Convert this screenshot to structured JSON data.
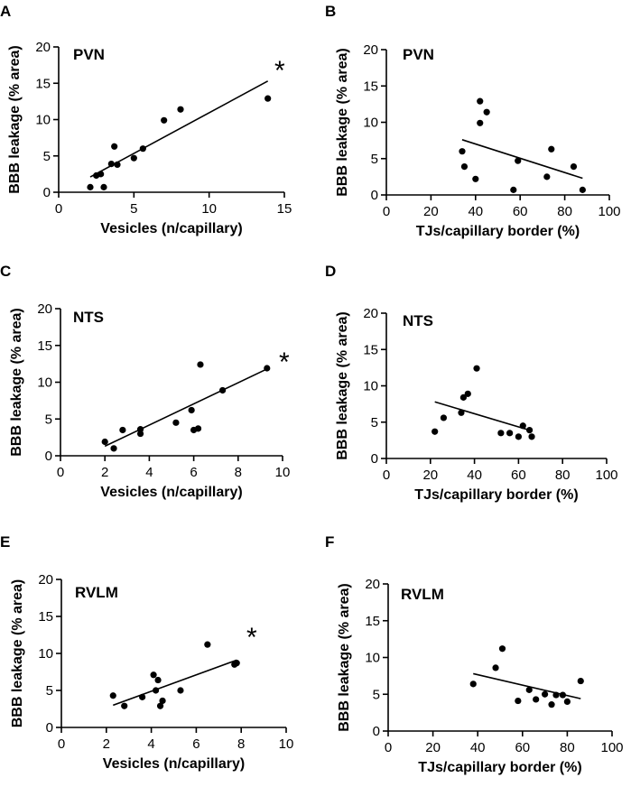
{
  "chart_data": [
    {
      "type": "scatter",
      "panel": "A",
      "title": "PVN",
      "xlabel": "Vesicles (n/capillary)",
      "ylabel": "BBB leakage (% area)",
      "xlim": [
        0,
        15
      ],
      "ylim": [
        0,
        20
      ],
      "xticks": [
        "0",
        "5",
        "10",
        "15"
      ],
      "yticks": [
        "0",
        "5",
        "10",
        "15",
        "20"
      ],
      "significance": "*",
      "points": [
        [
          2.1,
          0.7
        ],
        [
          2.5,
          2.3
        ],
        [
          2.8,
          2.5
        ],
        [
          3.0,
          0.7
        ],
        [
          3.5,
          3.9
        ],
        [
          3.7,
          6.3
        ],
        [
          3.9,
          3.8
        ],
        [
          5.0,
          4.7
        ],
        [
          5.6,
          6.0
        ],
        [
          7.0,
          9.9
        ],
        [
          8.1,
          11.4
        ],
        [
          13.9,
          12.9
        ]
      ],
      "fit": [
        [
          2.1,
          2.1
        ],
        [
          13.9,
          15.3
        ]
      ]
    },
    {
      "type": "scatter",
      "panel": "B",
      "title": "PVN",
      "xlabel": "TJs/capillary border (%)",
      "ylabel": "BBB leakage (% area)",
      "xlim": [
        0,
        100
      ],
      "ylim": [
        0,
        20
      ],
      "xticks": [
        "0",
        "20",
        "40",
        "60",
        "80",
        "100"
      ],
      "yticks": [
        "0",
        "5",
        "10",
        "15",
        "20"
      ],
      "significance": "",
      "points": [
        [
          34,
          6.0
        ],
        [
          35,
          3.9
        ],
        [
          40,
          2.2
        ],
        [
          42,
          12.9
        ],
        [
          42,
          9.9
        ],
        [
          45,
          11.4
        ],
        [
          57,
          0.7
        ],
        [
          59,
          4.7
        ],
        [
          72,
          2.5
        ],
        [
          74,
          6.3
        ],
        [
          84,
          3.9
        ],
        [
          88,
          0.7
        ]
      ],
      "fit": [
        [
          34,
          7.6
        ],
        [
          88,
          2.3
        ]
      ]
    },
    {
      "type": "scatter",
      "panel": "C",
      "title": "NTS",
      "xlabel": "Vesicles (n/capillary)",
      "ylabel": "BBB leakage (% area)",
      "xlim": [
        0,
        10
      ],
      "ylim": [
        0,
        20
      ],
      "xticks": [
        "0",
        "2",
        "4",
        "6",
        "8",
        "10"
      ],
      "yticks": [
        "0",
        "5",
        "10",
        "15",
        "20"
      ],
      "significance": "*",
      "points": [
        [
          2.0,
          1.9
        ],
        [
          2.4,
          1.0
        ],
        [
          2.8,
          3.5
        ],
        [
          3.6,
          3.6
        ],
        [
          3.6,
          3.0
        ],
        [
          5.2,
          4.5
        ],
        [
          5.9,
          6.2
        ],
        [
          6.0,
          3.5
        ],
        [
          6.2,
          3.7
        ],
        [
          6.3,
          12.4
        ],
        [
          7.3,
          8.9
        ],
        [
          9.3,
          11.9
        ]
      ],
      "fit": [
        [
          2.0,
          1.3
        ],
        [
          9.3,
          11.8
        ]
      ]
    },
    {
      "type": "scatter",
      "panel": "D",
      "title": "NTS",
      "xlabel": "TJs/capillary border (%)",
      "ylabel": "BBB leakage (% area)",
      "xlim": [
        0,
        100
      ],
      "ylim": [
        0,
        20
      ],
      "xticks": [
        "0",
        "20",
        "40",
        "60",
        "80",
        "100"
      ],
      "yticks": [
        "0",
        "5",
        "10",
        "15",
        "20"
      ],
      "significance": "",
      "points": [
        [
          22,
          3.7
        ],
        [
          26,
          5.6
        ],
        [
          34,
          6.3
        ],
        [
          35,
          8.4
        ],
        [
          37,
          8.9
        ],
        [
          41,
          12.4
        ],
        [
          52,
          3.5
        ],
        [
          56,
          3.5
        ],
        [
          60,
          3.0
        ],
        [
          62,
          4.5
        ],
        [
          65,
          3.9
        ],
        [
          66,
          3.0
        ]
      ],
      "fit": [
        [
          22,
          7.8
        ],
        [
          66,
          3.8
        ]
      ]
    },
    {
      "type": "scatter",
      "panel": "E",
      "title": "RVLM",
      "xlabel": "Vesicles (n/capillary)",
      "ylabel": "BBB leakage (% area)",
      "xlim": [
        0,
        10
      ],
      "ylim": [
        0,
        20
      ],
      "xticks": [
        "0",
        "2",
        "4",
        "6",
        "8",
        "10"
      ],
      "yticks": [
        "0",
        "5",
        "10",
        "15",
        "20"
      ],
      "significance": "*",
      "points": [
        [
          2.3,
          4.3
        ],
        [
          2.8,
          2.9
        ],
        [
          3.6,
          4.1
        ],
        [
          4.1,
          7.1
        ],
        [
          4.2,
          5.0
        ],
        [
          4.3,
          6.4
        ],
        [
          4.4,
          2.9
        ],
        [
          4.5,
          3.6
        ],
        [
          5.3,
          5.0
        ],
        [
          6.5,
          11.2
        ],
        [
          7.7,
          8.5
        ],
        [
          7.8,
          8.7
        ]
      ],
      "fit": [
        [
          2.3,
          3.0
        ],
        [
          7.8,
          9.1
        ]
      ]
    },
    {
      "type": "scatter",
      "panel": "F",
      "title": "RVLM",
      "xlabel": "TJs/capillary border (%)",
      "ylabel": "BBB leakage (% area)",
      "xlim": [
        0,
        100
      ],
      "ylim": [
        0,
        20
      ],
      "xticks": [
        "0",
        "20",
        "40",
        "60",
        "80",
        "100"
      ],
      "yticks": [
        "0",
        "5",
        "10",
        "15",
        "20"
      ],
      "significance": "",
      "points": [
        [
          38,
          6.4
        ],
        [
          48,
          8.6
        ],
        [
          51,
          11.2
        ],
        [
          58,
          4.1
        ],
        [
          63,
          5.6
        ],
        [
          66,
          4.3
        ],
        [
          70,
          5.0
        ],
        [
          73,
          3.6
        ],
        [
          75,
          4.9
        ],
        [
          78,
          4.9
        ],
        [
          80,
          4.0
        ],
        [
          86,
          6.8
        ]
      ],
      "fit": [
        [
          38,
          7.8
        ],
        [
          86,
          4.4
        ]
      ]
    }
  ]
}
